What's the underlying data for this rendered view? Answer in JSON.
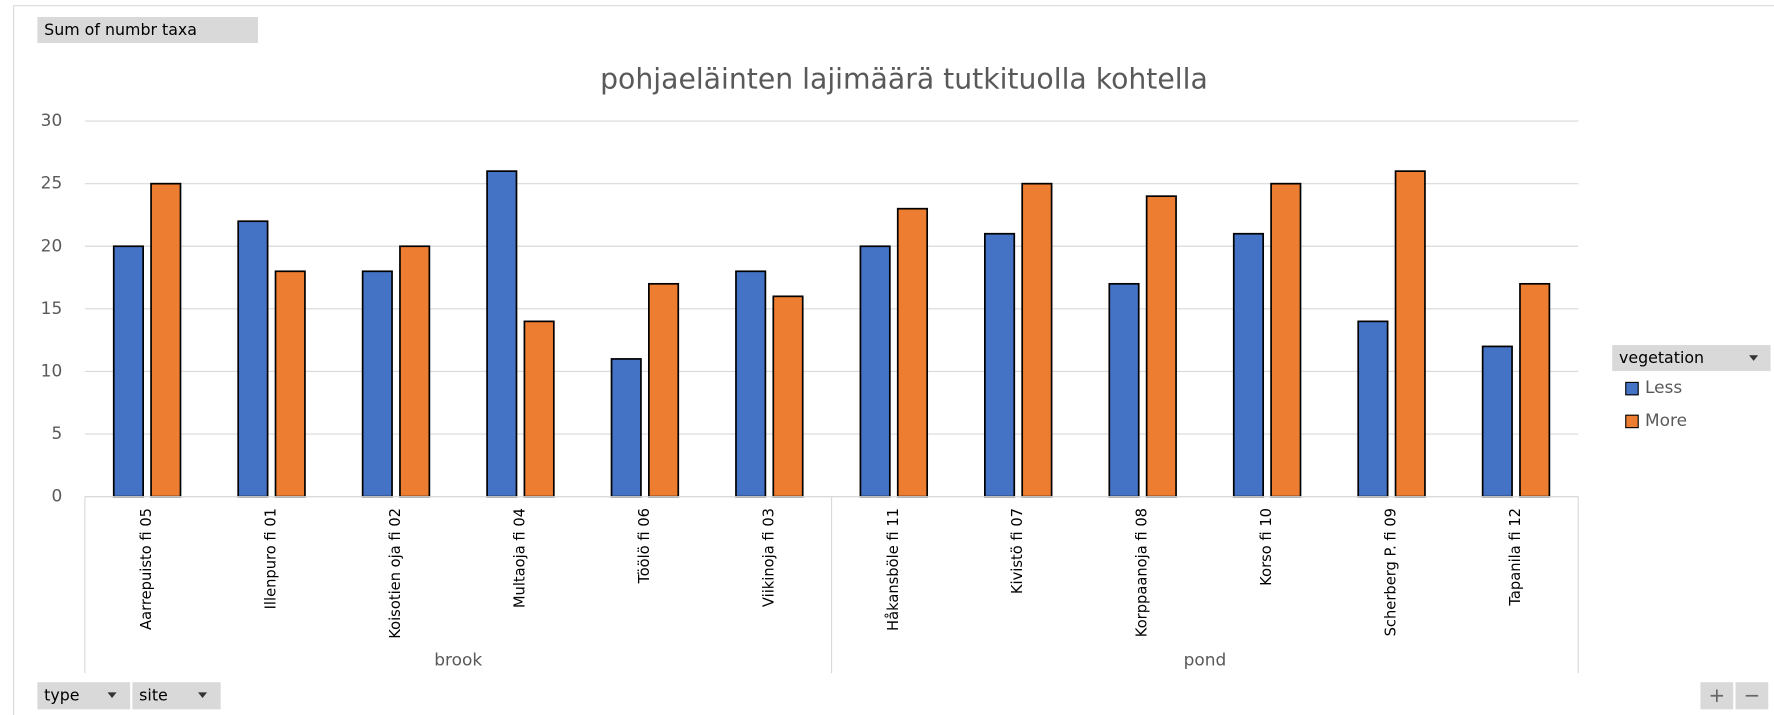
{
  "chart_data": {
    "type": "bar",
    "title": "pohjaeläinten lajimäärä tutkituolla kohtella",
    "field_buttons": {
      "values": "Sum of numbr taxa",
      "axis": [
        "type",
        "site"
      ],
      "legend": "vegetation"
    },
    "categories": [
      "Aarrepuisto fi 05",
      "Illenpuro fi 01",
      "Koisotien oja fi 02",
      "Multaoja fi 04",
      "Töölö fi 06",
      "Viikinoja fi 03",
      "Håkansböle fi 11",
      "Kivistö fi 07",
      "Korppaanoja fi 08",
      "Korso fi 10",
      "Scherberg P. fi 09",
      "Tapanila fi 12"
    ],
    "groups": [
      {
        "name": "brook",
        "size": 6
      },
      {
        "name": "pond",
        "size": 6
      }
    ],
    "series": [
      {
        "name": "Less",
        "color": "#4472c4",
        "values": [
          20,
          22,
          18,
          26,
          11,
          18,
          20,
          21,
          17,
          21,
          14,
          12
        ]
      },
      {
        "name": "More",
        "color": "#ed7d31",
        "values": [
          25,
          18,
          20,
          14,
          17,
          16,
          23,
          25,
          24,
          25,
          26,
          17
        ]
      }
    ],
    "ylim": [
      0,
      30
    ],
    "yticks": [
      0,
      5,
      10,
      15,
      20,
      25,
      30
    ],
    "grid": true
  }
}
